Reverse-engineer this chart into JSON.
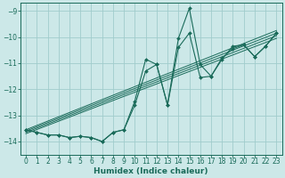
{
  "xlabel": "Humidex (Indice chaleur)",
  "bg_color": "#cce8e8",
  "grid_color": "#a0cccc",
  "line_color": "#1a6b5a",
  "xlim": [
    -0.5,
    23.5
  ],
  "ylim": [
    -14.5,
    -8.7
  ],
  "yticks": [
    -14,
    -13,
    -12,
    -11,
    -10,
    -9
  ],
  "xticks": [
    0,
    1,
    2,
    3,
    4,
    5,
    6,
    7,
    8,
    9,
    10,
    11,
    12,
    13,
    14,
    15,
    16,
    17,
    18,
    19,
    20,
    21,
    22,
    23
  ],
  "line1_x": [
    0,
    1,
    2,
    3,
    4,
    5,
    6,
    7,
    8,
    9,
    10,
    11,
    12,
    13,
    14,
    15,
    16,
    17,
    18,
    19,
    20,
    21,
    22,
    23
  ],
  "line1_y": [
    -13.55,
    -13.65,
    -13.75,
    -13.75,
    -13.85,
    -13.8,
    -13.85,
    -14.0,
    -13.65,
    -13.55,
    -12.45,
    -10.85,
    -11.05,
    -12.6,
    -10.05,
    -8.9,
    -11.05,
    -11.5,
    -10.85,
    -10.35,
    -10.3,
    -10.75,
    -10.35,
    -9.85
  ],
  "line2_x": [
    0,
    1,
    2,
    3,
    4,
    5,
    6,
    7,
    8,
    9,
    10,
    11,
    12,
    13,
    14,
    15,
    16,
    17,
    18,
    19,
    20,
    21,
    22,
    23
  ],
  "line2_y": [
    -13.55,
    -13.65,
    -13.75,
    -13.75,
    -13.85,
    -13.8,
    -13.85,
    -14.0,
    -13.65,
    -13.55,
    -12.6,
    -11.3,
    -11.05,
    -12.6,
    -10.4,
    -9.85,
    -11.55,
    -11.5,
    -10.8,
    -10.45,
    -10.3,
    -10.75,
    -10.35,
    -9.85
  ],
  "reg_lines": [
    {
      "x": [
        0,
        23
      ],
      "y": [
        -13.55,
        -9.75
      ]
    },
    {
      "x": [
        0,
        23
      ],
      "y": [
        -13.6,
        -9.85
      ]
    },
    {
      "x": [
        0,
        23
      ],
      "y": [
        -13.65,
        -9.95
      ]
    },
    {
      "x": [
        0,
        23
      ],
      "y": [
        -13.7,
        -10.05
      ]
    }
  ]
}
